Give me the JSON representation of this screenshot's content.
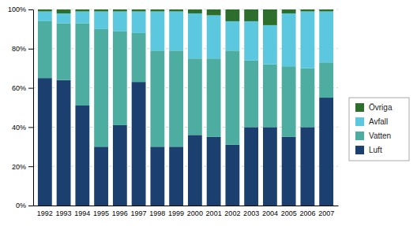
{
  "chart_data": {
    "type": "bar",
    "stacked": true,
    "grid": true,
    "legend": "right",
    "categories": [
      "1992",
      "1993",
      "1994",
      "1995",
      "1996",
      "1997",
      "1998",
      "1999",
      "2000",
      "2001",
      "2002",
      "2003",
      "2004",
      "2005",
      "2006",
      "2007"
    ],
    "series": [
      {
        "name": "Luft",
        "color": "#1b3f6e",
        "values": [
          65,
          64,
          51,
          30,
          41,
          63,
          30,
          30,
          36,
          35,
          31,
          40,
          40,
          35,
          40,
          55
        ]
      },
      {
        "name": "Vatten",
        "color": "#4dada0",
        "values": [
          29,
          29,
          42,
          60,
          48,
          25,
          49,
          49,
          39,
          40,
          48,
          34,
          32,
          36,
          30,
          18
        ]
      },
      {
        "name": "Avfall",
        "color": "#5bc8e0",
        "values": [
          5,
          5,
          6,
          9,
          10,
          11,
          20,
          20,
          23,
          22,
          15,
          20,
          20,
          27,
          29,
          26
        ]
      },
      {
        "name": "Övriga",
        "color": "#2d6e2d",
        "values": [
          1,
          2,
          1,
          1,
          1,
          1,
          1,
          1,
          2,
          3,
          6,
          6,
          8,
          2,
          1,
          1
        ]
      }
    ],
    "ylim": [
      0,
      100
    ],
    "yticks": [
      {
        "value": 0,
        "label": "0%"
      },
      {
        "value": 20,
        "label": "20%"
      },
      {
        "value": 40,
        "label": "40%"
      },
      {
        "value": 60,
        "label": "60%"
      },
      {
        "value": 80,
        "label": "80%"
      },
      {
        "value": 100,
        "label": "100%"
      }
    ]
  }
}
